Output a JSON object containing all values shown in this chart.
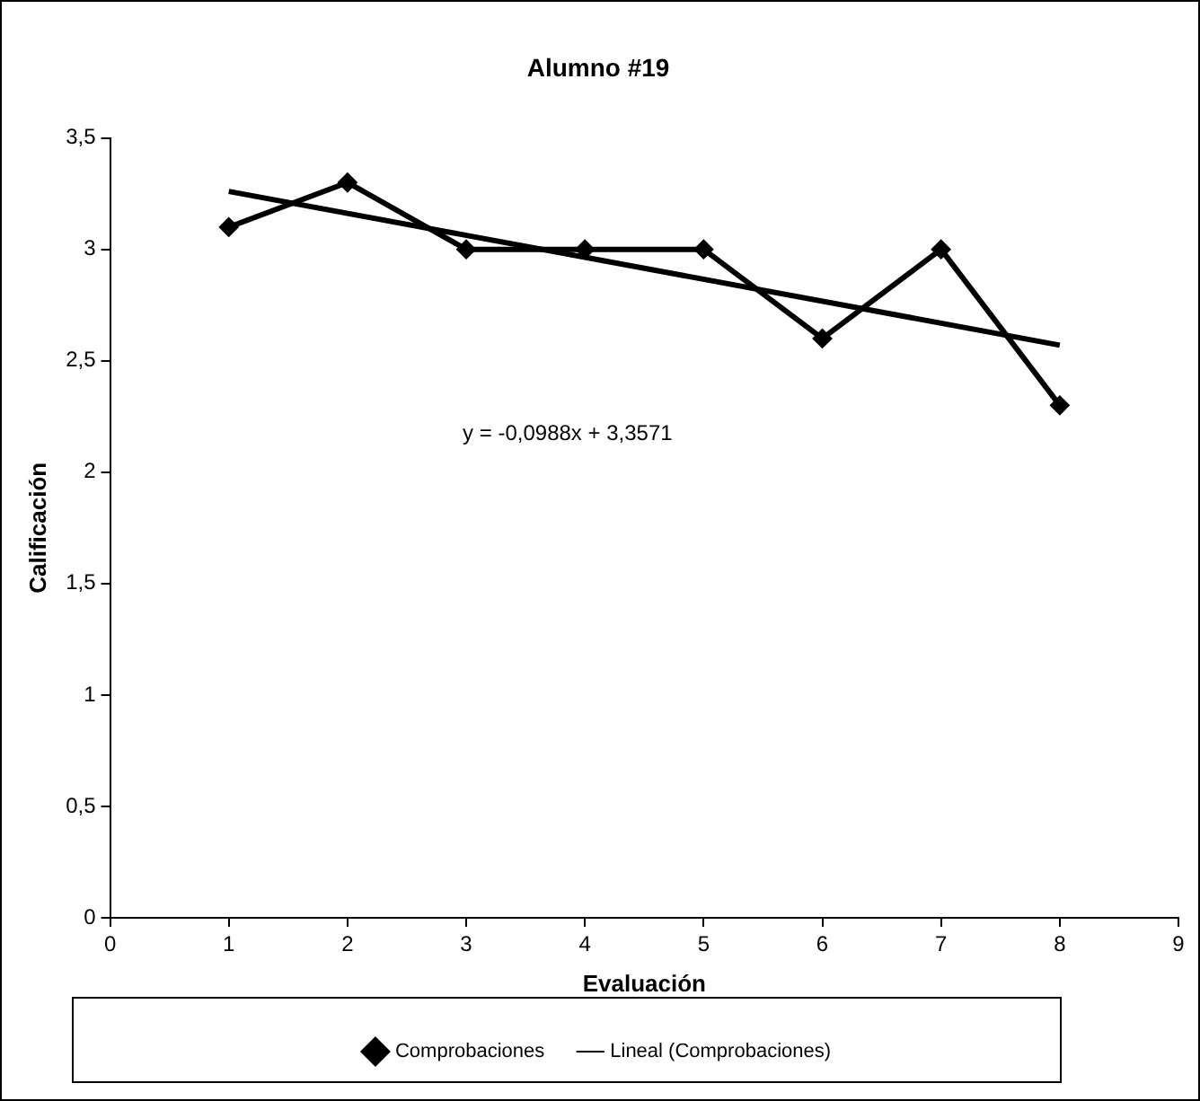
{
  "chart_data": {
    "type": "line",
    "title": "Alumno #19",
    "xlabel": "Evaluación",
    "ylabel": "Calificación",
    "x": [
      1,
      2,
      3,
      4,
      5,
      6,
      7,
      8
    ],
    "series": [
      {
        "name": "Comprobaciones",
        "color": "#000000",
        "values": [
          3.1,
          3.3,
          3.0,
          3.0,
          3.0,
          2.6,
          3.0,
          2.3
        ]
      },
      {
        "name": "Lineal (Comprobaciones)",
        "type": "line",
        "marker": "none",
        "color": "#000000",
        "x": [
          1,
          8
        ],
        "values": [
          3.26,
          2.57
        ]
      }
    ],
    "xlim": [
      0,
      9
    ],
    "xticks": [
      0,
      1,
      2,
      3,
      4,
      5,
      6,
      7,
      8,
      9
    ],
    "ylim": [
      0,
      3.5
    ],
    "yticks": [
      0,
      {
        "value": 0.5,
        "label": "0,5"
      },
      1,
      {
        "value": 1.5,
        "label": "1,5"
      },
      2,
      {
        "value": 2.5,
        "label": "2,5"
      },
      3,
      {
        "value": 3.5,
        "label": "3,5"
      }
    ],
    "annotations": [
      "y = -0,0988x + 3,3571"
    ],
    "marker": "diamond",
    "line_style": "solid",
    "grid": false,
    "legend": "bottom"
  }
}
